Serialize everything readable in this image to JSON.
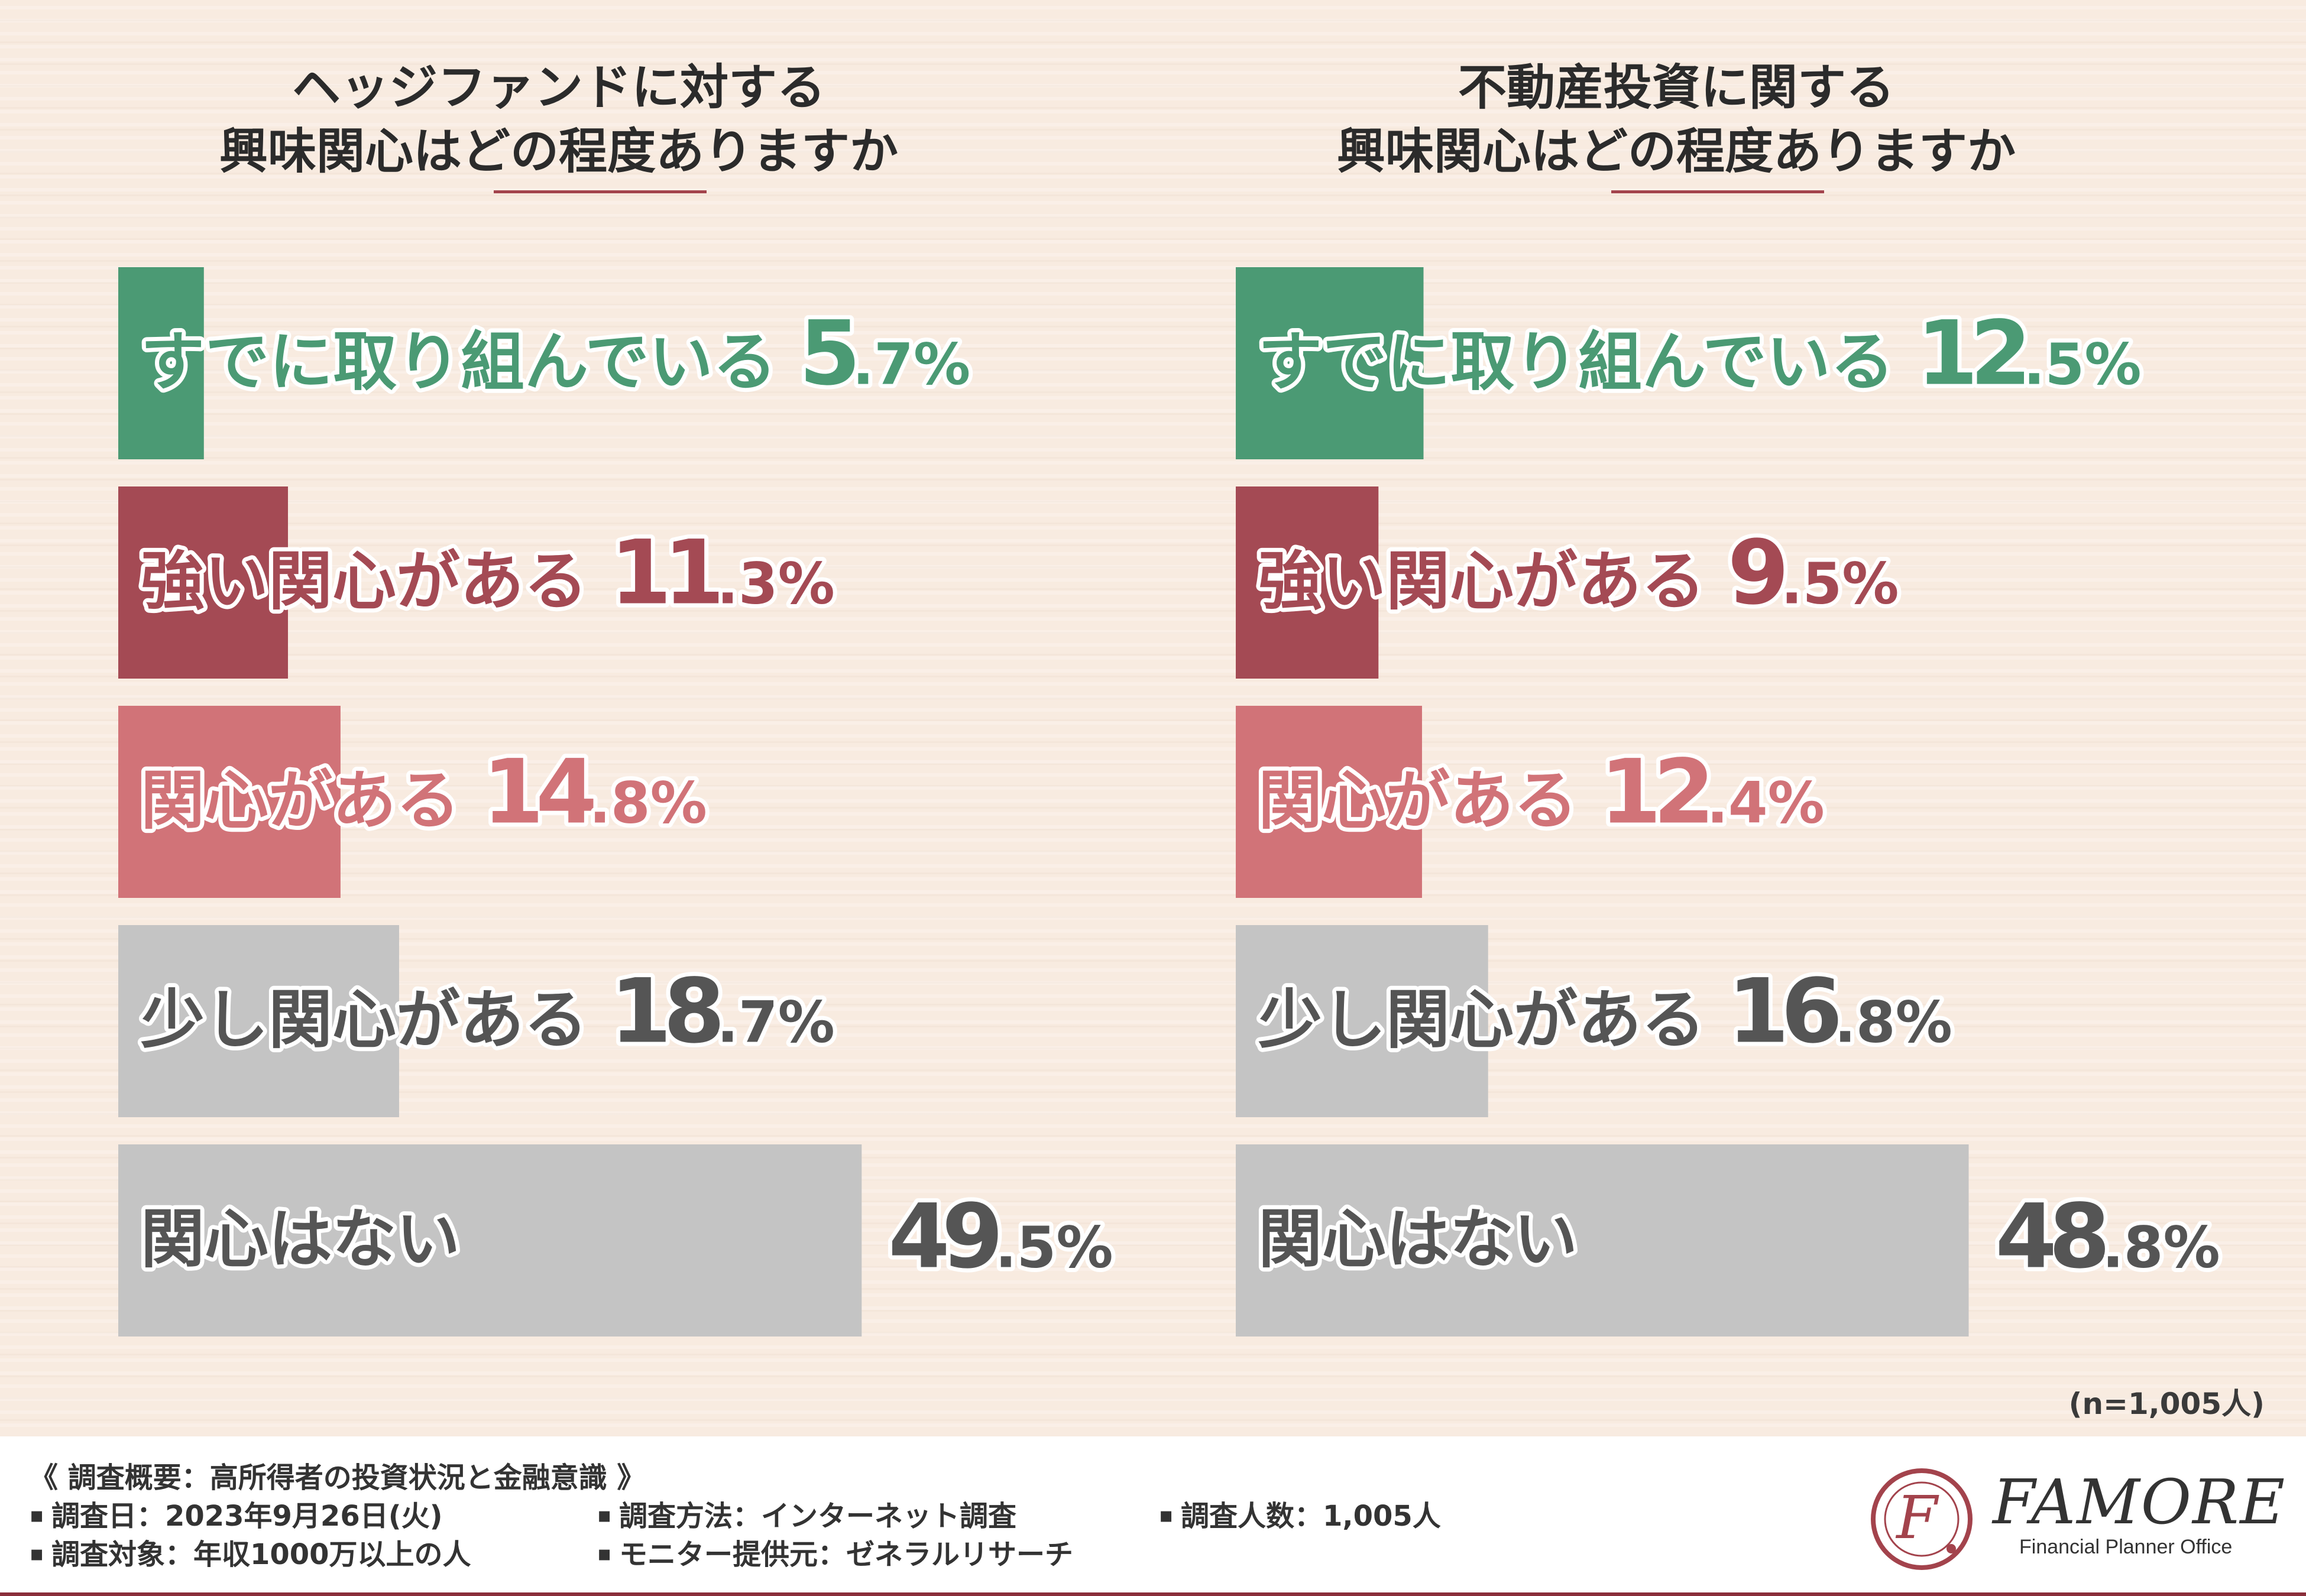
{
  "colors": {
    "already": "#4b9a74",
    "strong": "#a44a54",
    "interested": "#d17378",
    "slight": "#c4c4c4",
    "none": "#c4c4c4",
    "label_already": "#4b9a74",
    "label_strong": "#a44a54",
    "label_interested": "#d17378",
    "label_gray": "#555555",
    "accent": "#a3434c"
  },
  "chart_data": [
    {
      "type": "bar",
      "orientation": "horizontal",
      "title_line1": "ヘッジファンドに対する",
      "title_line2": "興味関心はどの程度ありますか",
      "categories": [
        "すでに取り組んでいる",
        "強い関心がある",
        "関心がある",
        "少し関心がある",
        "関心はない"
      ],
      "values": [
        5.7,
        11.3,
        14.8,
        18.7,
        49.5
      ],
      "value_labels": [
        "5.7%",
        "11.3%",
        "14.8%",
        "18.7%",
        "49.5%"
      ],
      "xlim": [
        0,
        50
      ]
    },
    {
      "type": "bar",
      "orientation": "horizontal",
      "title_line1": "不動産投資に関する",
      "title_line2": "興味関心はどの程度ありますか",
      "categories": [
        "すでに取り組んでいる",
        "強い関心がある",
        "関心がある",
        "少し関心がある",
        "関心はない"
      ],
      "values": [
        12.5,
        9.5,
        12.4,
        16.8,
        48.8
      ],
      "value_labels": [
        "12.5%",
        "9.5%",
        "12.4%",
        "16.8%",
        "48.8%"
      ],
      "xlim": [
        0,
        50
      ]
    }
  ],
  "sample_note": "(n=1,005人)",
  "footer": {
    "overview": "《 調査概要：高所得者の投資状況と金融意識 》",
    "survey_date": "調査日：2023年9月26日(火)",
    "survey_target": "調査対象：年収1000万以上の人",
    "survey_method": "調査方法：インターネット調査",
    "monitor_provider": "モニター提供元：ゼネラルリサーチ",
    "sample_size": "調査人数：1,005人"
  },
  "logo": {
    "name": "FAMORE",
    "subtitle": "Financial Planner Office",
    "mark_letter": "F"
  }
}
